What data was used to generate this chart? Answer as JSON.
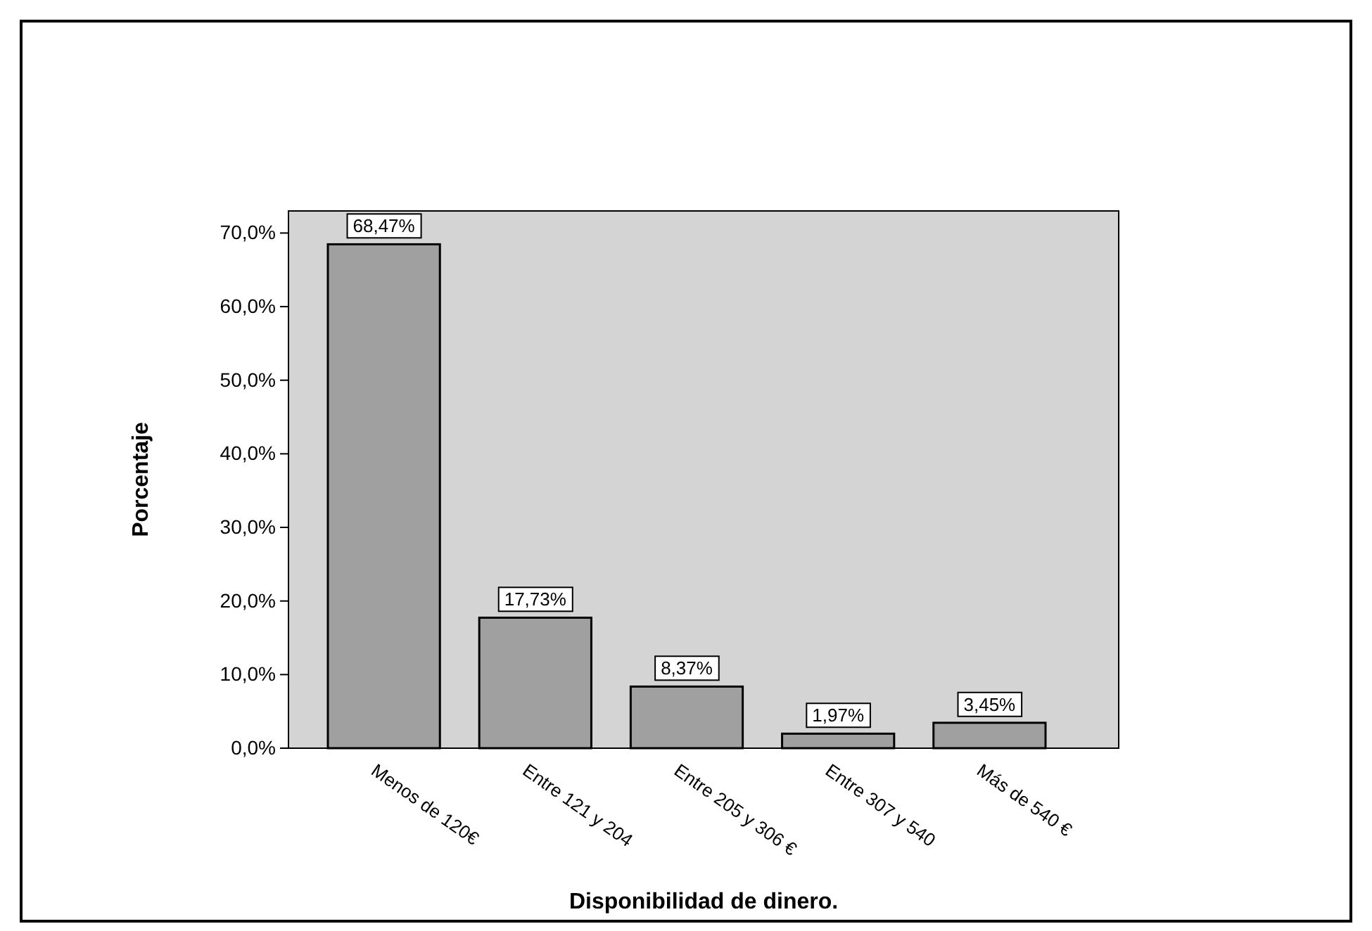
{
  "chart_data": {
    "type": "bar",
    "xlabel": "Disponibilidad de dinero.",
    "ylabel": "Porcentaje",
    "categories": [
      "Menos de 120€",
      "Entre 121 y 204",
      "Entre 205 y 306 €",
      "Entre 307 y 540",
      "Más de 540 €"
    ],
    "values": [
      68.47,
      17.73,
      8.37,
      1.97,
      3.45
    ],
    "value_labels": [
      "68,47%",
      "17,73%",
      "8,37%",
      "1,97%",
      "3,45%"
    ],
    "color": "#a0a0a0",
    "ylim": [
      0,
      73
    ],
    "yticks": [
      {
        "value": 0,
        "label": "0,0%"
      },
      {
        "value": 10,
        "label": "10,0%"
      },
      {
        "value": 20,
        "label": "20,0%"
      },
      {
        "value": 30,
        "label": "30,0%"
      },
      {
        "value": 40,
        "label": "40,0%"
      },
      {
        "value": 50,
        "label": "50,0%"
      },
      {
        "value": 60,
        "label": "60,0%"
      },
      {
        "value": 70,
        "label": "70,0%"
      }
    ],
    "grid": false
  }
}
